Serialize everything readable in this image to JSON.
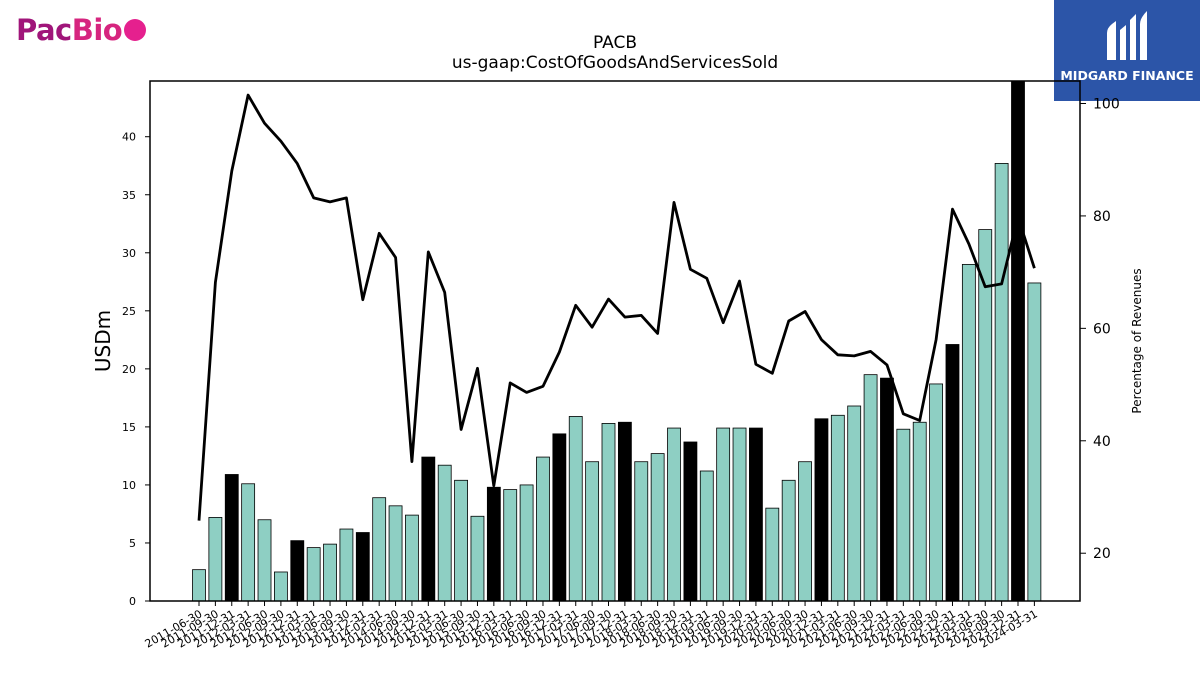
{
  "branding": {
    "left_logo": "PacBio",
    "left_logo_colors": {
      "pac": "#a0157a",
      "bio": "#d6257f",
      "dot": "#e5208e"
    },
    "right_logo": "MIDGARD FINANCE",
    "right_logo_bg": "#2c55a8"
  },
  "chart_data": {
    "type": "bar",
    "title": "PACB",
    "subtitle": "us-gaap:CostOfGoodsAndServicesSold",
    "ylabel": "USDm",
    "y2label": "Percentage of Revenues",
    "ylim": [
      0,
      44.8
    ],
    "y2lim": [
      11.5,
      104
    ],
    "yticks": [
      0,
      5,
      10,
      15,
      20,
      25,
      30,
      35,
      40
    ],
    "y2ticks": [
      20,
      40,
      60,
      80,
      100
    ],
    "grid": false,
    "legend": "none",
    "colors": {
      "bar_quarter": "#8ecfc3",
      "bar_annual": "#000000",
      "line": "#000000"
    },
    "categories": [
      "2011-06-30",
      "2011-09-30",
      "2011-12-31",
      "2012-03-31",
      "2012-06-30",
      "2012-09-30",
      "2012-12-31",
      "2013-03-31",
      "2013-06-30",
      "2013-09-30",
      "2013-12-31",
      "2014-03-31",
      "2014-06-30",
      "2014-09-30",
      "2014-12-31",
      "2015-03-31",
      "2015-06-30",
      "2015-09-30",
      "2015-12-31",
      "2016-03-31",
      "2016-06-30",
      "2016-09-30",
      "2016-12-31",
      "2017-03-31",
      "2017-06-30",
      "2017-09-30",
      "2017-12-31",
      "2018-03-31",
      "2018-06-30",
      "2018-09-30",
      "2018-12-31",
      "2019-03-31",
      "2019-06-30",
      "2019-09-30",
      "2019-12-31",
      "2020-03-31",
      "2020-06-30",
      "2020-09-30",
      "2020-12-31",
      "2021-03-31",
      "2021-06-30",
      "2021-09-30",
      "2021-12-31",
      "2022-03-31",
      "2022-06-30",
      "2022-09-30",
      "2022-12-31",
      "2023-03-31",
      "2023-06-30",
      "2023-09-30",
      "2023-12-31",
      "2024-03-31"
    ],
    "series": [
      {
        "role": "bars",
        "values": [
          2.7,
          7.2,
          10.9,
          10.1,
          7.0,
          2.5,
          5.2,
          4.6,
          4.9,
          6.2,
          5.9,
          8.9,
          8.2,
          7.4,
          12.4,
          11.7,
          10.4,
          7.3,
          9.8,
          9.6,
          10.0,
          12.4,
          14.4,
          15.9,
          12.0,
          15.3,
          15.4,
          12.0,
          12.7,
          14.9,
          13.7,
          11.2,
          14.9,
          14.9,
          14.9,
          8.0,
          10.4,
          12.0,
          15.7,
          16.0,
          16.8,
          19.5,
          19.2,
          14.8,
          15.4,
          18.7,
          22.1,
          29.0,
          32.0,
          37.7,
          44.8,
          27.4
        ],
        "annual": [
          false,
          false,
          true,
          false,
          false,
          false,
          true,
          false,
          false,
          false,
          true,
          false,
          false,
          false,
          true,
          false,
          false,
          false,
          true,
          false,
          false,
          false,
          true,
          false,
          false,
          false,
          true,
          false,
          false,
          false,
          true,
          false,
          false,
          false,
          true,
          false,
          false,
          false,
          true,
          false,
          false,
          false,
          true,
          false,
          false,
          false,
          true,
          false,
          false,
          false,
          true,
          false
        ]
      },
      {
        "role": "line",
        "axis": "right",
        "values": [
          25.8,
          68.2,
          88.0,
          101.5,
          96.5,
          93.3,
          89.3,
          83.2,
          82.5,
          83.2,
          65.1,
          76.9,
          72.6,
          36.3,
          73.6,
          66.4,
          42.0,
          52.9,
          32.0,
          50.3,
          48.6,
          49.7,
          55.8,
          64.1,
          60.2,
          65.2,
          62.0,
          62.3,
          59.1,
          82.4,
          70.5,
          68.9,
          61.0,
          68.4,
          53.6,
          52.0,
          61.3,
          63.0,
          58.0,
          55.3,
          55.1,
          55.9,
          53.5,
          44.8,
          43.6,
          58.0,
          81.2,
          75.0,
          67.4,
          67.9,
          79.8,
          70.7
        ]
      }
    ]
  }
}
